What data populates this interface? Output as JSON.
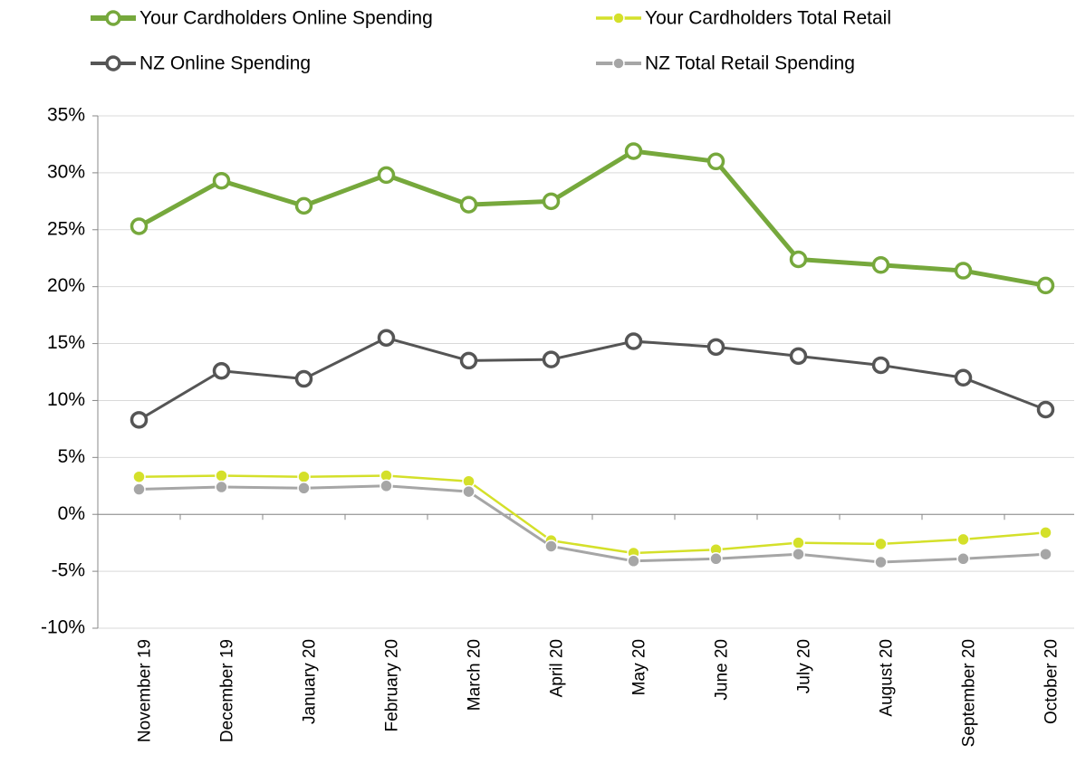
{
  "chart_data": {
    "type": "line",
    "categories": [
      "November 19",
      "December 19",
      "January 20",
      "February 20",
      "March 20",
      "April 20",
      "May 20",
      "June 20",
      "July 20",
      "August 20",
      "September 20",
      "October 20"
    ],
    "series": [
      {
        "name": "Your Cardholders Online Spending",
        "color": "#76a83c",
        "marker": "open",
        "values": [
          25.3,
          29.3,
          27.1,
          29.8,
          27.2,
          27.5,
          31.9,
          31.0,
          22.4,
          21.9,
          21.4,
          20.1
        ]
      },
      {
        "name": "Your Cardholders Total Retail",
        "color": "#d4e02a",
        "marker": "filled",
        "values": [
          3.3,
          3.4,
          3.3,
          3.4,
          2.9,
          -2.3,
          -3.4,
          -3.1,
          -2.5,
          -2.6,
          -2.2,
          -1.6
        ]
      },
      {
        "name": "NZ Online Spending",
        "color": "#555555",
        "marker": "open",
        "values": [
          8.3,
          12.6,
          11.9,
          15.5,
          13.5,
          13.6,
          15.2,
          14.7,
          13.9,
          13.1,
          12.0,
          9.2
        ]
      },
      {
        "name": "NZ Total Retail Spending",
        "color": "#a6a6a6",
        "marker": "filled",
        "values": [
          2.2,
          2.4,
          2.3,
          2.5,
          2.0,
          -2.8,
          -4.1,
          -3.9,
          -3.5,
          -4.2,
          -3.9,
          -3.5
        ]
      }
    ],
    "ylim": [
      -10,
      35
    ],
    "yticks": [
      {
        "value": -10,
        "label": "-10%"
      },
      {
        "value": -5,
        "label": "-5%"
      },
      {
        "value": 0,
        "label": "0%"
      },
      {
        "value": 5,
        "label": "5%"
      },
      {
        "value": 10,
        "label": "10%"
      },
      {
        "value": 15,
        "label": "15%"
      },
      {
        "value": 20,
        "label": "20%"
      },
      {
        "value": 25,
        "label": "25%"
      },
      {
        "value": 30,
        "label": "30%"
      },
      {
        "value": 35,
        "label": "35%"
      }
    ],
    "grid": true,
    "legend": "top"
  }
}
